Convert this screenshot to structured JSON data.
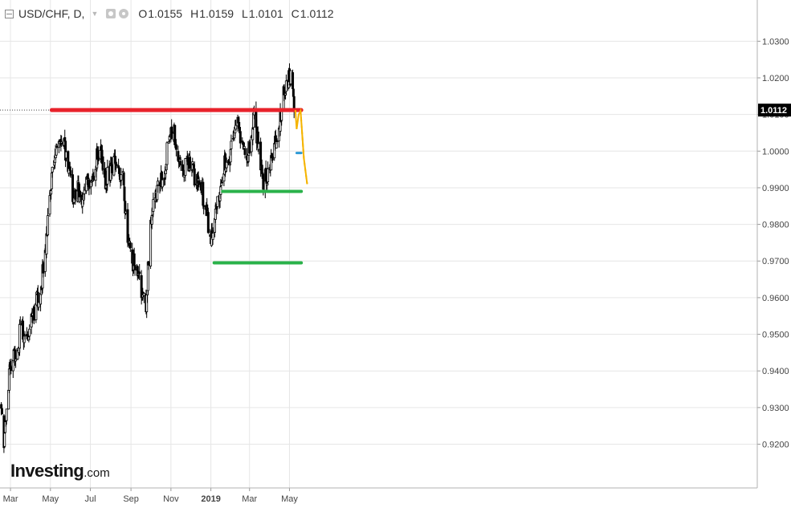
{
  "header": {
    "symbol": "USD/CHF, D,",
    "ohlc": [
      {
        "key": "O",
        "value": "1.0155"
      },
      {
        "key": "H",
        "value": "1.0159"
      },
      {
        "key": "L",
        "value": "1.0101"
      },
      {
        "key": "C",
        "value": "1.0112"
      }
    ],
    "icons": [
      "collapse-icon",
      "chevron-down-icon",
      "eye-icon",
      "gear-icon"
    ]
  },
  "logo": {
    "brand": "Investing",
    "suffix": ".com"
  },
  "chart_data": {
    "type": "candlestick",
    "title": "USD/CHF, D,",
    "xlabel": "",
    "ylabel": "",
    "x_tick_labels": [
      "Mar",
      "May",
      "Jul",
      "Sep",
      "Nov",
      "2019",
      "Mar",
      "May"
    ],
    "y_tick_labels": [
      "1.0300",
      "1.0200",
      "1.0100",
      "1.0000",
      "0.9900",
      "0.9800",
      "0.9700",
      "0.9600",
      "0.9500",
      "0.9400",
      "0.9300",
      "0.9200"
    ],
    "ylim": [
      0.912,
      1.0395
    ],
    "grid": true,
    "last_price": "1.0112",
    "last_price_color": "#000000",
    "price_path": [
      [
        "2018-02-15",
        0.931
      ],
      [
        "2018-02-19",
        0.9205
      ],
      [
        "2018-02-27",
        0.939
      ],
      [
        "2018-03-05",
        0.944
      ],
      [
        "2018-03-12",
        0.947
      ],
      [
        "2018-03-17",
        0.9525
      ],
      [
        "2018-03-25",
        0.947
      ],
      [
        "2018-04-02",
        0.953
      ],
      [
        "2018-04-09",
        0.959
      ],
      [
        "2018-04-16",
        0.962
      ],
      [
        "2018-04-23",
        0.972
      ],
      [
        "2018-04-30",
        0.988
      ],
      [
        "2018-05-07",
        0.998
      ],
      [
        "2018-05-14",
        1.002
      ],
      [
        "2018-05-20",
        1.005
      ],
      [
        "2018-05-28",
        0.995
      ],
      [
        "2018-06-04",
        0.988
      ],
      [
        "2018-06-11",
        0.99
      ],
      [
        "2018-06-18",
        0.986
      ],
      [
        "2018-06-25",
        0.993
      ],
      [
        "2018-07-02",
        0.992
      ],
      [
        "2018-07-09",
        0.997
      ],
      [
        "2018-07-16",
        1.001
      ],
      [
        "2018-07-23",
        0.992
      ],
      [
        "2018-07-30",
        0.994
      ],
      [
        "2018-08-06",
        0.996
      ],
      [
        "2018-08-13",
        0.995
      ],
      [
        "2018-08-20",
        0.993
      ],
      [
        "2018-08-27",
        0.975
      ],
      [
        "2018-09-03",
        0.97
      ],
      [
        "2018-09-10",
        0.97
      ],
      [
        "2018-09-17",
        0.962
      ],
      [
        "2018-09-24",
        0.958
      ],
      [
        "2018-10-01",
        0.98
      ],
      [
        "2018-10-08",
        0.988
      ],
      [
        "2018-10-15",
        0.99
      ],
      [
        "2018-10-22",
        0.995
      ],
      [
        "2018-10-29",
        1.003
      ],
      [
        "2018-11-05",
        1.006
      ],
      [
        "2018-11-12",
        1.0
      ],
      [
        "2018-11-19",
        0.995
      ],
      [
        "2018-11-26",
        0.997
      ],
      [
        "2018-12-03",
        0.995
      ],
      [
        "2018-12-10",
        0.992
      ],
      [
        "2018-12-17",
        0.99
      ],
      [
        "2018-12-24",
        0.985
      ],
      [
        "2019-01-01",
        0.976
      ],
      [
        "2019-01-07",
        0.982
      ],
      [
        "2019-01-14",
        0.989
      ],
      [
        "2019-01-21",
        0.996
      ],
      [
        "2019-01-28",
        0.996
      ],
      [
        "2019-02-04",
        1.003
      ],
      [
        "2019-02-11",
        1.007
      ],
      [
        "2019-02-18",
        1.003
      ],
      [
        "2019-02-25",
        0.998
      ],
      [
        "2019-03-04",
        1.005
      ],
      [
        "2019-03-08",
        1.009
      ],
      [
        "2019-03-15",
        1.001
      ],
      [
        "2019-03-22",
        0.992
      ],
      [
        "2019-03-29",
        0.994
      ],
      [
        "2019-04-05",
        0.999
      ],
      [
        "2019-04-12",
        1.003
      ],
      [
        "2019-04-19",
        1.012
      ],
      [
        "2019-04-26",
        1.019
      ],
      [
        "2019-05-01",
        1.02
      ],
      [
        "2019-05-06",
        1.019
      ],
      [
        "2019-05-09",
        1.0112
      ]
    ],
    "annotations": [
      {
        "type": "horizontal-line",
        "name": "resistance",
        "color": "#e8222b",
        "y": 1.0112,
        "x_from": "2018-05-03",
        "x_to": "2019-05-19"
      },
      {
        "type": "horizontal-line",
        "name": "level",
        "color": "#2d9ad6",
        "y": 0.9995,
        "x_from": "2019-05-12",
        "x_to": "2019-05-19"
      },
      {
        "type": "horizontal-line",
        "name": "support",
        "color": "#2ab24a",
        "y": 0.989,
        "x_from": "2019-01-19",
        "x_to": "2019-05-19"
      },
      {
        "type": "horizontal-line",
        "name": "support",
        "color": "#2ab24a",
        "y": 0.9695,
        "x_from": "2019-01-06",
        "x_to": "2019-05-19"
      },
      {
        "type": "projection",
        "color": "#f5b400",
        "points": [
          [
            "2019-05-10",
            1.0112
          ],
          [
            "2019-05-12",
            1.006
          ],
          [
            "2019-05-15",
            1.01
          ],
          [
            "2019-05-18",
            1.011
          ],
          [
            "2019-05-23",
            0.998
          ],
          [
            "2019-05-28",
            0.991
          ]
        ]
      }
    ]
  }
}
